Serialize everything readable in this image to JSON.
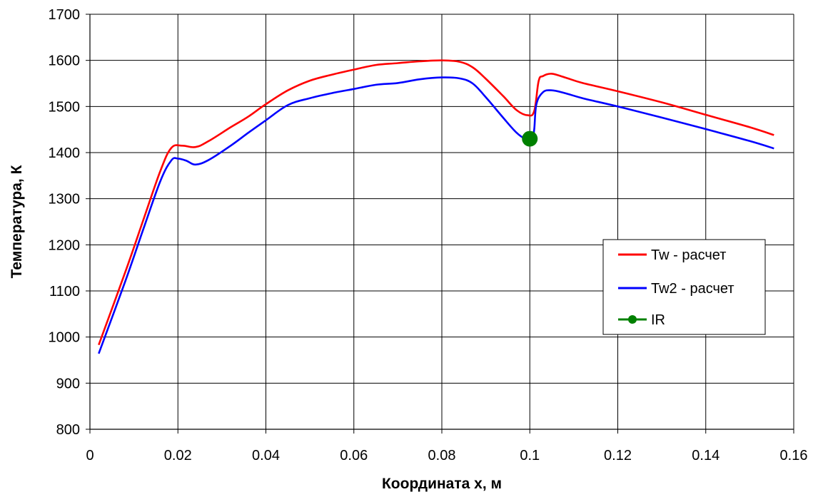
{
  "chart_data": {
    "type": "line",
    "title": "",
    "xlabel": "Координата  x, м",
    "ylabel": "Температура, К",
    "xlim": [
      0,
      0.16
    ],
    "ylim": [
      800,
      1700
    ],
    "x_ticks": [
      "0",
      "0.02",
      "0.04",
      "0.06",
      "0.08",
      "0.1",
      "0.12",
      "0.14",
      "0.16"
    ],
    "y_ticks": [
      "800",
      "900",
      "1000",
      "1100",
      "1200",
      "1300",
      "1400",
      "1500",
      "1600",
      "1700"
    ],
    "grid": true,
    "legend_position": "right",
    "series": [
      {
        "name": "Tw - расчет",
        "color": "#ff0000",
        "marker": "none",
        "points": [
          [
            0.002,
            983
          ],
          [
            0.008,
            1140
          ],
          [
            0.012,
            1250
          ],
          [
            0.016,
            1360
          ],
          [
            0.0185,
            1410
          ],
          [
            0.021,
            1415
          ],
          [
            0.024,
            1412
          ],
          [
            0.027,
            1425
          ],
          [
            0.032,
            1455
          ],
          [
            0.036,
            1478
          ],
          [
            0.04,
            1505
          ],
          [
            0.045,
            1535
          ],
          [
            0.05,
            1556
          ],
          [
            0.055,
            1569
          ],
          [
            0.06,
            1580
          ],
          [
            0.065,
            1590
          ],
          [
            0.07,
            1594
          ],
          [
            0.075,
            1598
          ],
          [
            0.08,
            1600
          ],
          [
            0.084,
            1597
          ],
          [
            0.087,
            1585
          ],
          [
            0.09,
            1560
          ],
          [
            0.094,
            1522
          ],
          [
            0.097,
            1492
          ],
          [
            0.0995,
            1481
          ],
          [
            0.101,
            1490
          ],
          [
            0.102,
            1555
          ],
          [
            0.103,
            1566
          ],
          [
            0.105,
            1571
          ],
          [
            0.108,
            1563
          ],
          [
            0.112,
            1551
          ],
          [
            0.12,
            1533
          ],
          [
            0.13,
            1509
          ],
          [
            0.14,
            1482
          ],
          [
            0.15,
            1455
          ],
          [
            0.1555,
            1438
          ]
        ]
      },
      {
        "name": "Tw2 - расчет",
        "color": "#0000ff",
        "marker": "none",
        "points": [
          [
            0.002,
            964
          ],
          [
            0.008,
            1120
          ],
          [
            0.012,
            1230
          ],
          [
            0.016,
            1338
          ],
          [
            0.0185,
            1383
          ],
          [
            0.02,
            1387
          ],
          [
            0.022,
            1382
          ],
          [
            0.024,
            1374
          ],
          [
            0.027,
            1384
          ],
          [
            0.032,
            1415
          ],
          [
            0.036,
            1443
          ],
          [
            0.04,
            1470
          ],
          [
            0.045,
            1503
          ],
          [
            0.05,
            1518
          ],
          [
            0.055,
            1529
          ],
          [
            0.06,
            1538
          ],
          [
            0.065,
            1547
          ],
          [
            0.07,
            1551
          ],
          [
            0.075,
            1559
          ],
          [
            0.08,
            1563
          ],
          [
            0.084,
            1561
          ],
          [
            0.087,
            1550
          ],
          [
            0.09,
            1520
          ],
          [
            0.094,
            1475
          ],
          [
            0.097,
            1443
          ],
          [
            0.099,
            1430
          ],
          [
            0.1005,
            1431
          ],
          [
            0.101,
            1450
          ],
          [
            0.1015,
            1505
          ],
          [
            0.103,
            1531
          ],
          [
            0.105,
            1535
          ],
          [
            0.108,
            1529
          ],
          [
            0.112,
            1518
          ],
          [
            0.12,
            1500
          ],
          [
            0.13,
            1476
          ],
          [
            0.14,
            1451
          ],
          [
            0.15,
            1425
          ],
          [
            0.1555,
            1409
          ]
        ]
      },
      {
        "name": "IR",
        "color": "#008000",
        "marker": "circle",
        "points": [
          [
            0.1,
            1430
          ]
        ]
      }
    ]
  }
}
